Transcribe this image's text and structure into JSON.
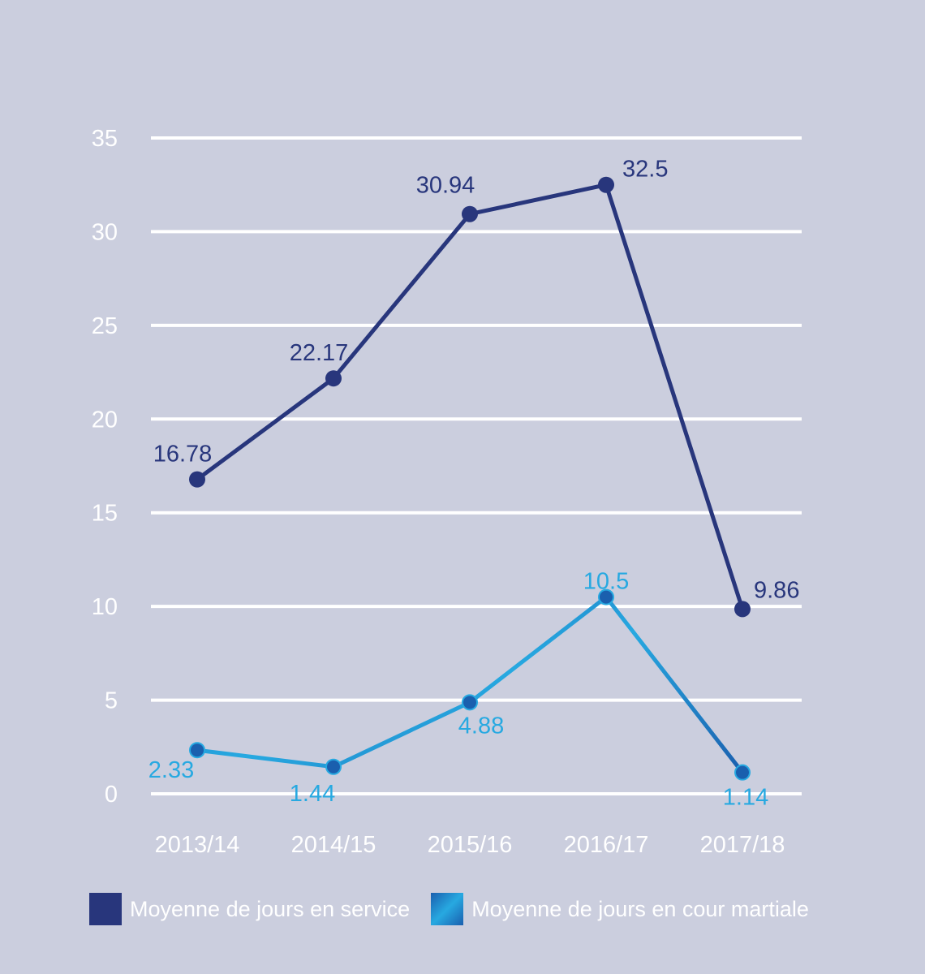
{
  "chart_data": {
    "type": "line",
    "categories": [
      "2013/14",
      "2014/15",
      "2015/16",
      "2016/17",
      "2017/18"
    ],
    "ylim": [
      0,
      35
    ],
    "yticks": [
      0,
      5,
      10,
      15,
      20,
      25,
      30,
      35
    ],
    "grid": true,
    "legend_position": "bottom",
    "series": [
      {
        "name": "Moyenne de jours en service",
        "values": [
          16.78,
          22.17,
          30.94,
          32.5,
          9.86
        ],
        "labels": [
          "16.78",
          "22.17",
          "30.94",
          "32.5",
          "9.86"
        ],
        "color": "#28367c"
      },
      {
        "name": "Moyenne de jours en cour martiale",
        "values": [
          2.33,
          1.44,
          4.88,
          10.5,
          1.14
        ],
        "labels": [
          "2.33",
          "1.44",
          "4.88",
          "10.5",
          "1.14"
        ],
        "color": "#1a5fae",
        "label_color": "#27a9e1"
      }
    ]
  }
}
